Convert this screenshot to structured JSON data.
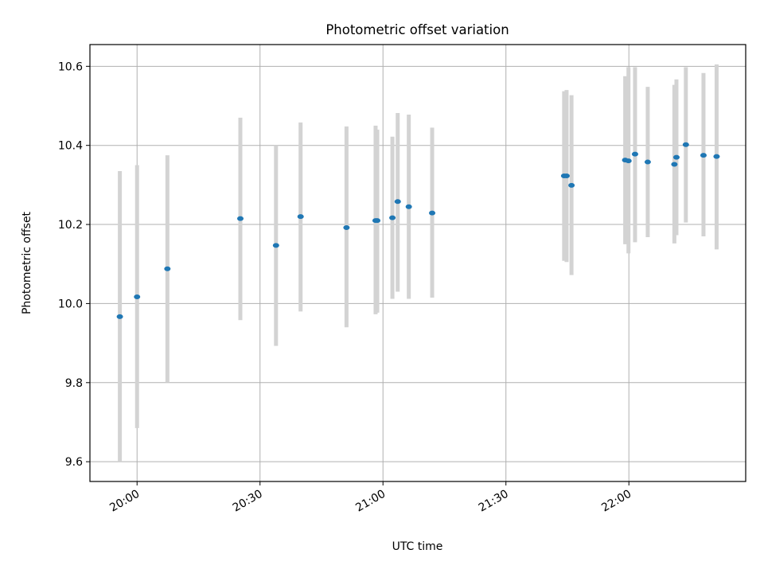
{
  "chart_data": {
    "type": "scatter",
    "title": "Photometric offset variation",
    "xlabel": "UTC time",
    "ylabel": "Photometric offset",
    "x_unit": "minutes since 19:00 UTC",
    "xlim": [
      48.5,
      208.5
    ],
    "ylim": [
      9.55,
      10.655
    ],
    "grid": true,
    "colors": {
      "marker": "#1f77b4",
      "errorbar": "#d3d3d3",
      "grid": "#b0b0b0",
      "axis": "#000000"
    },
    "x_ticks": [
      {
        "value": 60,
        "label": "20:00"
      },
      {
        "value": 90,
        "label": "20:30"
      },
      {
        "value": 120,
        "label": "21:00"
      },
      {
        "value": 150,
        "label": "21:30"
      },
      {
        "value": 180,
        "label": "22:00"
      }
    ],
    "y_ticks": [
      {
        "value": 9.6,
        "label": "9.6"
      },
      {
        "value": 9.8,
        "label": "9.8"
      },
      {
        "value": 10.0,
        "label": "10.0"
      },
      {
        "value": 10.2,
        "label": "10.2"
      },
      {
        "value": 10.4,
        "label": "10.4"
      },
      {
        "value": 10.6,
        "label": "10.6"
      }
    ],
    "points": [
      {
        "x": 55.8,
        "y": 9.967,
        "ylow": 9.6,
        "yhigh": 10.335
      },
      {
        "x": 60.0,
        "y": 10.017,
        "ylow": 9.685,
        "yhigh": 10.35
      },
      {
        "x": 67.4,
        "y": 10.088,
        "ylow": 9.8,
        "yhigh": 10.375
      },
      {
        "x": 85.2,
        "y": 10.215,
        "ylow": 9.958,
        "yhigh": 10.47
      },
      {
        "x": 93.9,
        "y": 10.147,
        "ylow": 9.893,
        "yhigh": 10.4
      },
      {
        "x": 99.9,
        "y": 10.22,
        "ylow": 9.98,
        "yhigh": 10.458
      },
      {
        "x": 111.1,
        "y": 10.192,
        "ylow": 9.94,
        "yhigh": 10.448
      },
      {
        "x": 118.2,
        "y": 10.21,
        "ylow": 9.973,
        "yhigh": 10.45
      },
      {
        "x": 118.6,
        "y": 10.21,
        "ylow": 9.977,
        "yhigh": 10.44
      },
      {
        "x": 122.3,
        "y": 10.217,
        "ylow": 10.012,
        "yhigh": 10.422
      },
      {
        "x": 123.6,
        "y": 10.258,
        "ylow": 10.03,
        "yhigh": 10.482
      },
      {
        "x": 126.3,
        "y": 10.245,
        "ylow": 10.012,
        "yhigh": 10.478
      },
      {
        "x": 132.0,
        "y": 10.229,
        "ylow": 10.015,
        "yhigh": 10.445
      },
      {
        "x": 164.2,
        "y": 10.323,
        "ylow": 10.108,
        "yhigh": 10.537
      },
      {
        "x": 164.8,
        "y": 10.323,
        "ylow": 10.105,
        "yhigh": 10.54
      },
      {
        "x": 166.0,
        "y": 10.299,
        "ylow": 10.072,
        "yhigh": 10.527
      },
      {
        "x": 179.1,
        "y": 10.363,
        "ylow": 10.15,
        "yhigh": 10.575
      },
      {
        "x": 179.9,
        "y": 10.361,
        "ylow": 10.127,
        "yhigh": 10.598
      },
      {
        "x": 181.5,
        "y": 10.378,
        "ylow": 10.155,
        "yhigh": 10.598
      },
      {
        "x": 184.6,
        "y": 10.358,
        "ylow": 10.168,
        "yhigh": 10.548
      },
      {
        "x": 191.1,
        "y": 10.352,
        "ylow": 10.152,
        "yhigh": 10.553
      },
      {
        "x": 191.6,
        "y": 10.37,
        "ylow": 10.173,
        "yhigh": 10.567
      },
      {
        "x": 193.9,
        "y": 10.402,
        "ylow": 10.205,
        "yhigh": 10.598
      },
      {
        "x": 198.2,
        "y": 10.375,
        "ylow": 10.17,
        "yhigh": 10.583
      },
      {
        "x": 201.4,
        "y": 10.372,
        "ylow": 10.137,
        "yhigh": 10.605
      }
    ]
  }
}
